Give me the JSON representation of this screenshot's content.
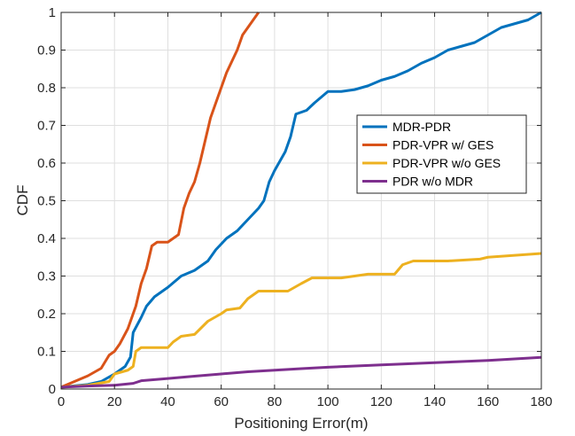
{
  "chart_data": {
    "type": "line",
    "xlabel": "Positioning Error(m)",
    "ylabel": "CDF",
    "xlim": [
      0,
      180
    ],
    "ylim": [
      0,
      1
    ],
    "xticks": [
      0,
      20,
      40,
      60,
      80,
      100,
      120,
      140,
      160,
      180
    ],
    "yticks": [
      0,
      0.1,
      0.2,
      0.3,
      0.4,
      0.5,
      0.6,
      0.7,
      0.8,
      0.9,
      1
    ],
    "grid": true,
    "legend_position": "right",
    "series": [
      {
        "name": "MDR-PDR",
        "color": "#0072BD",
        "points": [
          [
            0,
            0.005
          ],
          [
            10,
            0.012
          ],
          [
            15,
            0.02
          ],
          [
            20,
            0.04
          ],
          [
            24,
            0.06
          ],
          [
            26,
            0.085
          ],
          [
            27,
            0.15
          ],
          [
            30,
            0.19
          ],
          [
            32,
            0.22
          ],
          [
            35,
            0.245
          ],
          [
            40,
            0.27
          ],
          [
            45,
            0.3
          ],
          [
            50,
            0.315
          ],
          [
            55,
            0.34
          ],
          [
            58,
            0.37
          ],
          [
            62,
            0.4
          ],
          [
            66,
            0.42
          ],
          [
            70,
            0.45
          ],
          [
            74,
            0.48
          ],
          [
            76,
            0.5
          ],
          [
            78,
            0.55
          ],
          [
            80,
            0.58
          ],
          [
            84,
            0.63
          ],
          [
            86,
            0.67
          ],
          [
            88,
            0.73
          ],
          [
            92,
            0.74
          ],
          [
            95,
            0.76
          ],
          [
            100,
            0.79
          ],
          [
            105,
            0.79
          ],
          [
            110,
            0.795
          ],
          [
            115,
            0.805
          ],
          [
            120,
            0.82
          ],
          [
            125,
            0.83
          ],
          [
            130,
            0.845
          ],
          [
            135,
            0.865
          ],
          [
            140,
            0.88
          ],
          [
            145,
            0.9
          ],
          [
            150,
            0.91
          ],
          [
            155,
            0.92
          ],
          [
            160,
            0.94
          ],
          [
            165,
            0.96
          ],
          [
            170,
            0.97
          ],
          [
            175,
            0.98
          ],
          [
            180,
            1.0
          ]
        ]
      },
      {
        "name": "PDR-VPR w/ GES",
        "color": "#D95319",
        "points": [
          [
            0,
            0.005
          ],
          [
            5,
            0.02
          ],
          [
            10,
            0.035
          ],
          [
            15,
            0.055
          ],
          [
            18,
            0.09
          ],
          [
            20,
            0.1
          ],
          [
            22,
            0.12
          ],
          [
            25,
            0.16
          ],
          [
            28,
            0.22
          ],
          [
            30,
            0.28
          ],
          [
            32,
            0.32
          ],
          [
            34,
            0.38
          ],
          [
            36,
            0.39
          ],
          [
            40,
            0.39
          ],
          [
            42,
            0.4
          ],
          [
            44,
            0.41
          ],
          [
            46,
            0.48
          ],
          [
            48,
            0.52
          ],
          [
            50,
            0.55
          ],
          [
            52,
            0.6
          ],
          [
            54,
            0.66
          ],
          [
            56,
            0.72
          ],
          [
            58,
            0.76
          ],
          [
            60,
            0.8
          ],
          [
            62,
            0.84
          ],
          [
            64,
            0.87
          ],
          [
            66,
            0.9
          ],
          [
            68,
            0.94
          ],
          [
            70,
            0.96
          ],
          [
            72,
            0.98
          ],
          [
            74,
            1.0
          ]
        ]
      },
      {
        "name": "PDR-VPR w/o GES",
        "color": "#EDB120",
        "points": [
          [
            0,
            0.005
          ],
          [
            10,
            0.01
          ],
          [
            18,
            0.02
          ],
          [
            20,
            0.04
          ],
          [
            25,
            0.05
          ],
          [
            27,
            0.06
          ],
          [
            28,
            0.1
          ],
          [
            30,
            0.11
          ],
          [
            40,
            0.11
          ],
          [
            42,
            0.125
          ],
          [
            45,
            0.14
          ],
          [
            50,
            0.145
          ],
          [
            55,
            0.18
          ],
          [
            60,
            0.2
          ],
          [
            62,
            0.21
          ],
          [
            67,
            0.215
          ],
          [
            70,
            0.24
          ],
          [
            74,
            0.26
          ],
          [
            85,
            0.26
          ],
          [
            90,
            0.28
          ],
          [
            94,
            0.295
          ],
          [
            105,
            0.295
          ],
          [
            110,
            0.3
          ],
          [
            115,
            0.305
          ],
          [
            125,
            0.305
          ],
          [
            128,
            0.33
          ],
          [
            132,
            0.34
          ],
          [
            145,
            0.34
          ],
          [
            157,
            0.345
          ],
          [
            160,
            0.35
          ],
          [
            170,
            0.355
          ],
          [
            180,
            0.36
          ]
        ]
      },
      {
        "name": "PDR w/o MDR",
        "color": "#7E2F8E",
        "points": [
          [
            0,
            0.005
          ],
          [
            10,
            0.008
          ],
          [
            20,
            0.01
          ],
          [
            27,
            0.015
          ],
          [
            30,
            0.022
          ],
          [
            40,
            0.028
          ],
          [
            50,
            0.034
          ],
          [
            60,
            0.04
          ],
          [
            70,
            0.046
          ],
          [
            80,
            0.05
          ],
          [
            90,
            0.054
          ],
          [
            100,
            0.058
          ],
          [
            120,
            0.064
          ],
          [
            140,
            0.07
          ],
          [
            160,
            0.076
          ],
          [
            180,
            0.084
          ]
        ]
      }
    ]
  }
}
